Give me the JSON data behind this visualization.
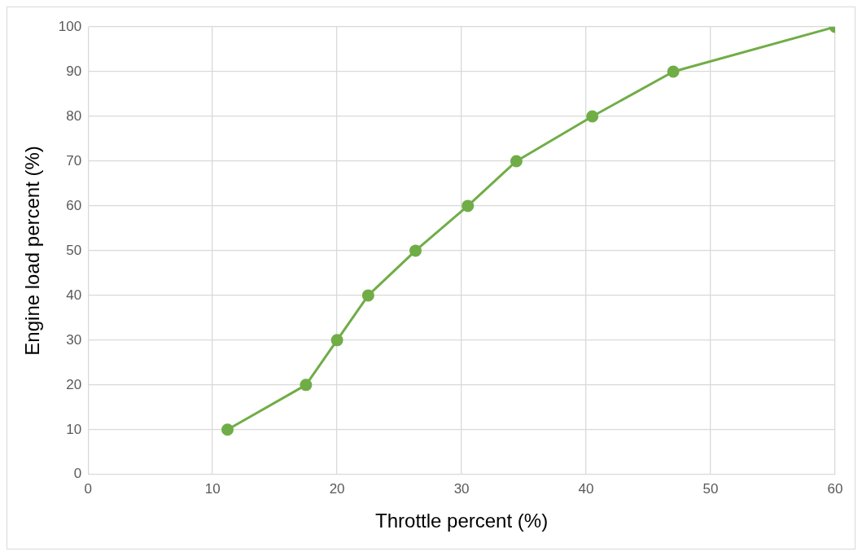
{
  "chart_data": {
    "type": "line",
    "xlabel": "Throttle percent (%)",
    "ylabel": "Engine load percent (%)",
    "x": [
      11.2,
      17.5,
      20.0,
      22.5,
      26.3,
      30.5,
      34.4,
      40.5,
      47.0,
      60.0
    ],
    "series": [
      {
        "color": "#70ad47",
        "values": [
          10,
          20,
          30,
          40,
          50,
          60,
          70,
          80,
          90,
          100
        ]
      }
    ],
    "xlim": [
      0,
      60
    ],
    "xticks": [
      0,
      10,
      20,
      30,
      40,
      50,
      60
    ],
    "ylim": [
      0,
      100
    ],
    "yticks": [
      0,
      10,
      20,
      30,
      40,
      50,
      60,
      70,
      80,
      90,
      100
    ],
    "grid": true,
    "marker": "circle",
    "line_style": "solid",
    "legend": false
  }
}
